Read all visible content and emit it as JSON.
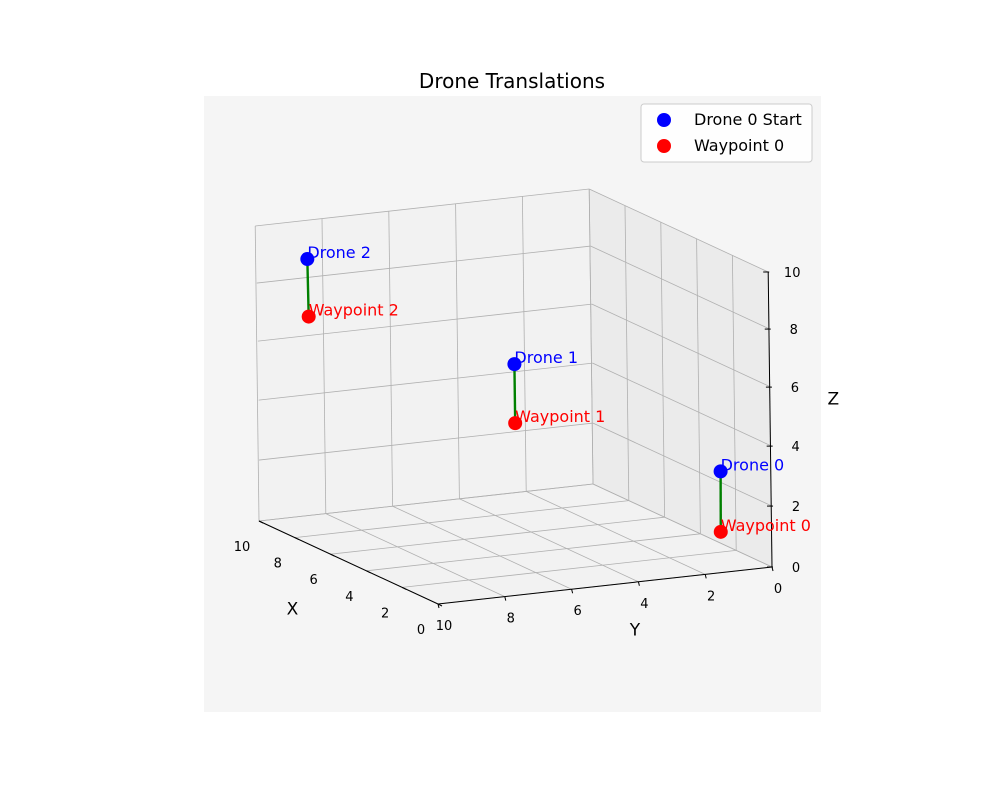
{
  "chart_data": {
    "type": "scatter",
    "projection": "3d",
    "title": "Drone Translations",
    "xlabel": "X",
    "ylabel": "Y",
    "zlabel": "Z",
    "xlim": [
      0,
      10
    ],
    "ylim": [
      0,
      10
    ],
    "zlim": [
      0,
      10
    ],
    "x_ticks": [
      "0",
      "2",
      "4",
      "6",
      "8",
      "10"
    ],
    "y_ticks": [
      "0",
      "2",
      "4",
      "6",
      "8",
      "10"
    ],
    "z_ticks": [
      "0",
      "2",
      "4",
      "6",
      "8",
      "10"
    ],
    "grid": true,
    "legend_placement": "top-right",
    "legend": [
      "Drone 0 Start",
      "Waypoint 0"
    ],
    "drones": [
      {
        "label": "Drone 0",
        "start": [
          1,
          1,
          3
        ],
        "waypoint_label": "Waypoint 0",
        "waypoint": [
          1,
          1,
          1
        ]
      },
      {
        "label": "Drone 1",
        "start": [
          5,
          5,
          6
        ],
        "waypoint_label": "Waypoint 1",
        "waypoint": [
          5,
          5,
          4
        ]
      },
      {
        "label": "Drone 2",
        "start": [
          9,
          9,
          9
        ],
        "waypoint_label": "Waypoint 2",
        "waypoint": [
          9,
          9,
          7
        ]
      }
    ],
    "colors": {
      "start": "#0000ff",
      "waypoint": "#ff0000",
      "path": "#008000",
      "axes_bg": "#f5f5f5",
      "pane_back": "#f2f2f2",
      "pane_side": "#ebebeb",
      "pane_floor": "#f2f2f2",
      "grid": "#b0b0b0"
    }
  }
}
